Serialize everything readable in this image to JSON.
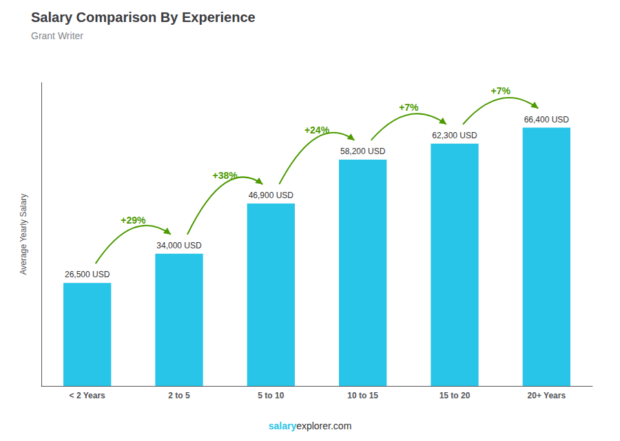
{
  "chart_data": {
    "type": "bar",
    "title": "Salary Comparison By Experience",
    "subtitle": "Grant Writer",
    "ylabel": "Average Yearly Salary",
    "categories": [
      "< 2 Years",
      "2 to 5",
      "5 to 10",
      "10 to 15",
      "15 to 20",
      "20+ Years"
    ],
    "values": [
      26500,
      34000,
      46900,
      58200,
      62300,
      66400
    ],
    "value_labels": [
      "26,500 USD",
      "34,000 USD",
      "46,900 USD",
      "58,200 USD",
      "62,300 USD",
      "66,400 USD"
    ],
    "data_labels": true,
    "annotations": [
      "+29%",
      "+38%",
      "+24%",
      "+7%",
      "+7%"
    ],
    "watermark": [
      "salary",
      "explorer.com"
    ],
    "color": "#29C5E8",
    "ylim": [
      0,
      78000
    ],
    "yticks": [],
    "tick_labels": "x",
    "grid": false
  }
}
